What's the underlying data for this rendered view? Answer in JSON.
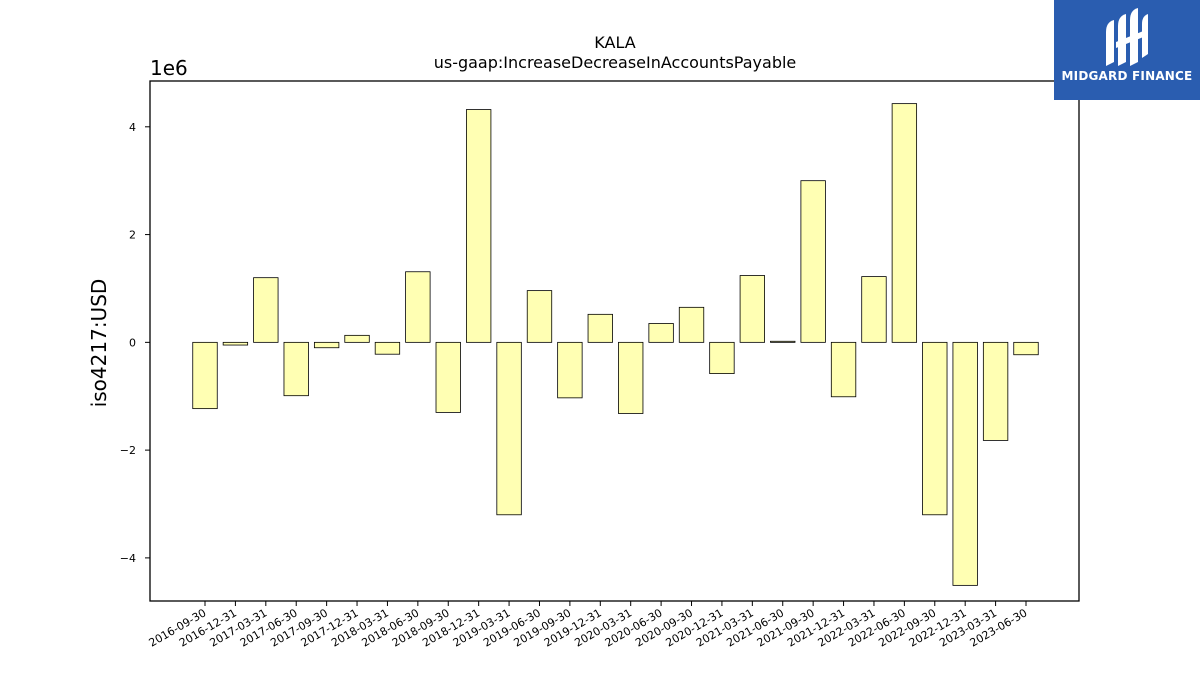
{
  "brand": {
    "name": "MIDGARD FINANCE",
    "color": "#2a5db0"
  },
  "chart_data": {
    "type": "bar",
    "title": "KALA",
    "subtitle": "us-gaap:IncreaseDecreaseInAccountsPayable",
    "ylabel": "iso4217:USD",
    "xlabel": "",
    "y_offset_label": "1e6",
    "y_multiplier": 1000000,
    "ylim": [
      -4.8,
      4.85
    ],
    "yticks": [
      -4,
      -2,
      0,
      2,
      4
    ],
    "grid": false,
    "bar_color": "#ffffb3",
    "bar_edge_color": "#000000",
    "categories": [
      "2016-09-30",
      "2016-12-31",
      "2017-03-31",
      "2017-06-30",
      "2017-09-30",
      "2017-12-31",
      "2018-03-31",
      "2018-06-30",
      "2018-09-30",
      "2018-12-31",
      "2019-03-31",
      "2019-06-30",
      "2019-09-30",
      "2019-12-31",
      "2020-03-31",
      "2020-06-30",
      "2020-09-30",
      "2020-12-31",
      "2021-03-31",
      "2021-06-30",
      "2021-09-30",
      "2021-12-31",
      "2022-03-31",
      "2022-06-30",
      "2022-09-30",
      "2022-12-31",
      "2023-03-31",
      "2023-06-30"
    ],
    "values": [
      -1.23,
      -0.05,
      1.2,
      -0.99,
      -0.1,
      0.13,
      -0.22,
      1.31,
      -1.3,
      4.32,
      -3.2,
      0.96,
      -1.03,
      0.52,
      -1.32,
      0.35,
      0.65,
      -0.58,
      1.24,
      0.02,
      3.0,
      -1.01,
      1.22,
      4.43,
      -3.2,
      -4.51,
      -1.82,
      -0.23
    ]
  }
}
